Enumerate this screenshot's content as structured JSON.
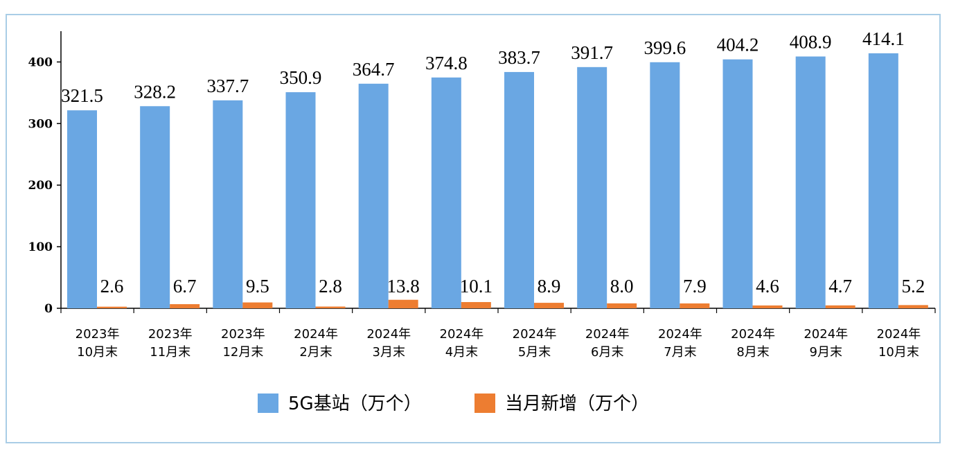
{
  "chart_data": {
    "type": "bar",
    "categories": [
      [
        "2023年",
        "10月末"
      ],
      [
        "2023年",
        "11月末"
      ],
      [
        "2023年",
        "12月末"
      ],
      [
        "2024年",
        "2月末"
      ],
      [
        "2024年",
        "3月末"
      ],
      [
        "2024年",
        "4月末"
      ],
      [
        "2024年",
        "5月末"
      ],
      [
        "2024年",
        "6月末"
      ],
      [
        "2024年",
        "7月末"
      ],
      [
        "2024年",
        "8月末"
      ],
      [
        "2024年",
        "9月末"
      ],
      [
        "2024年",
        "10月末"
      ]
    ],
    "series": [
      {
        "name": "5G基站（万个）",
        "color": "#6aa7e3",
        "values": [
          321.5,
          328.2,
          337.7,
          350.9,
          364.7,
          374.8,
          383.7,
          391.7,
          399.6,
          404.2,
          408.9,
          414.1
        ],
        "labels": [
          "321.5",
          "328.2",
          "337.7",
          "350.9",
          "364.7",
          "374.8",
          "383.7",
          "391.7",
          "399.6",
          "404.2",
          "408.9",
          "414.1"
        ]
      },
      {
        "name": "当月新增（万个）",
        "color": "#ed7d31",
        "values": [
          2.6,
          6.7,
          9.5,
          2.8,
          13.8,
          10.1,
          8.9,
          8.0,
          7.9,
          4.6,
          4.7,
          5.2
        ],
        "labels": [
          "2.6",
          "6.7",
          "9.5",
          "2.8",
          "13.8",
          "10.1",
          "8.9",
          "8.0",
          "7.9",
          "4.6",
          "4.7",
          "5.2"
        ]
      }
    ],
    "yticks": [
      "0",
      "100",
      "200",
      "300",
      "400"
    ],
    "ytick_values": [
      0,
      100,
      200,
      300,
      400
    ],
    "ylim": [
      0,
      450
    ],
    "grid": false,
    "legend_position": "bottom"
  }
}
